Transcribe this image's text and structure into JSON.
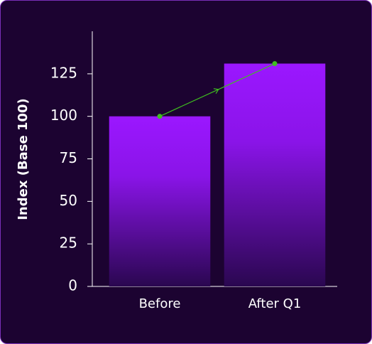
{
  "chart_data": {
    "type": "bar",
    "ylabel": "Index (Base 100)",
    "categories": [
      "Before",
      "After Q1"
    ],
    "values": [
      100,
      131
    ],
    "color": "#9b17ff",
    "line_color": "#3fbf1f",
    "ylim": [
      0,
      150
    ],
    "yticks": [
      0,
      25,
      50,
      75,
      100,
      125
    ],
    "grid": false
  }
}
